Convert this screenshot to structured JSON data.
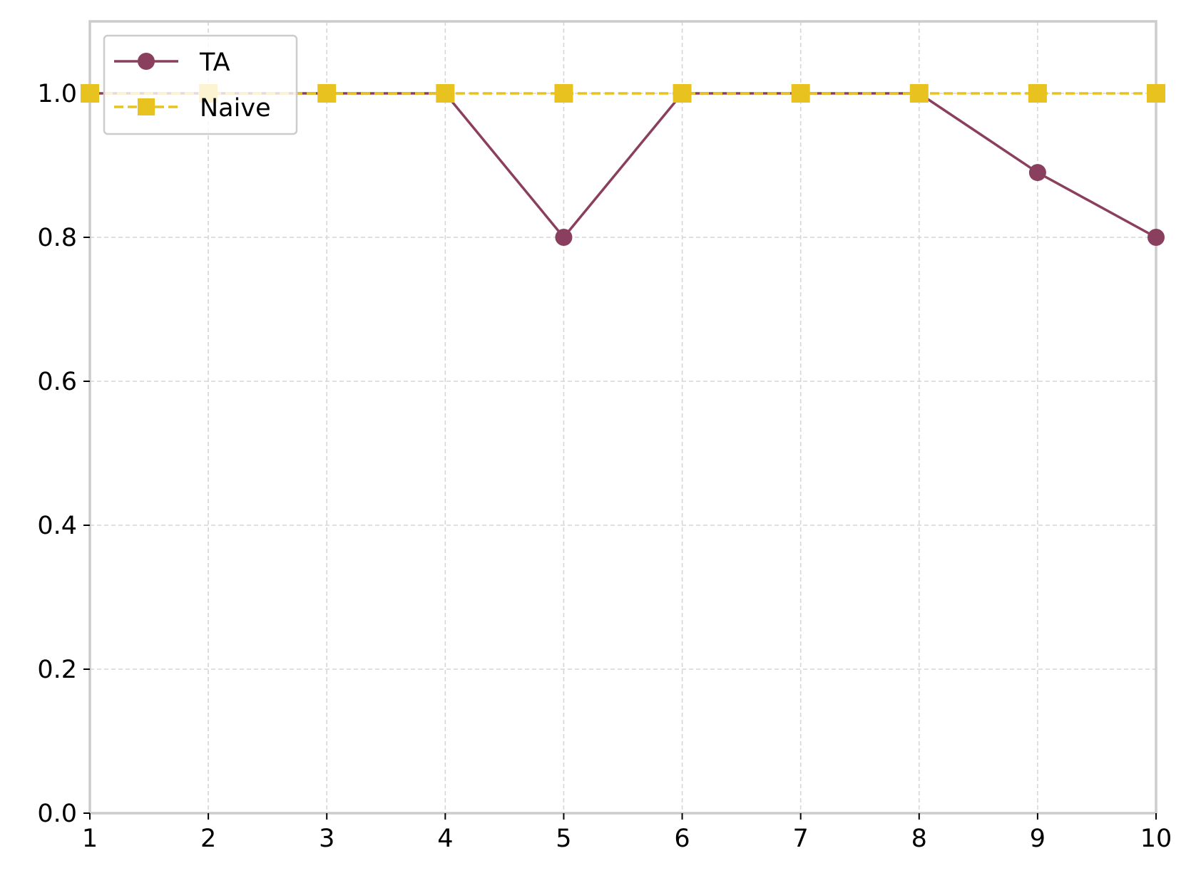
{
  "chart_data": {
    "type": "line",
    "title": "",
    "xlabel": "",
    "ylabel": "",
    "x": [
      1,
      2,
      3,
      4,
      5,
      6,
      7,
      8,
      9,
      10
    ],
    "xlim": [
      1,
      10
    ],
    "ylim": [
      0.0,
      1.1
    ],
    "x_ticks": [
      1,
      2,
      3,
      4,
      5,
      6,
      7,
      8,
      9,
      10
    ],
    "y_ticks": [
      0.0,
      0.2,
      0.4,
      0.6,
      0.8,
      1.0
    ],
    "x_tick_labels": [
      "1",
      "2",
      "3",
      "4",
      "5",
      "6",
      "7",
      "8",
      "9",
      "10"
    ],
    "y_tick_labels": [
      "0.0",
      "0.2",
      "0.4",
      "0.6",
      "0.8",
      "1.0"
    ],
    "grid": true,
    "legend_position": "top-left",
    "series": [
      {
        "name": "TA",
        "values": [
          1.0,
          1.0,
          1.0,
          1.0,
          0.8,
          1.0,
          1.0,
          1.0,
          0.89,
          0.8
        ],
        "color": "#8B3F5E",
        "marker": "circle",
        "line_style": "solid"
      },
      {
        "name": "Naive",
        "values": [
          1.0,
          1.0,
          1.0,
          1.0,
          1.0,
          1.0,
          1.0,
          1.0,
          1.0,
          1.0
        ],
        "color": "#E8C21E",
        "marker": "square",
        "line_style": "dashed"
      }
    ]
  },
  "colors": {
    "axis": "#cccccc",
    "grid": "#d6d6d6",
    "background": "#ffffff"
  }
}
